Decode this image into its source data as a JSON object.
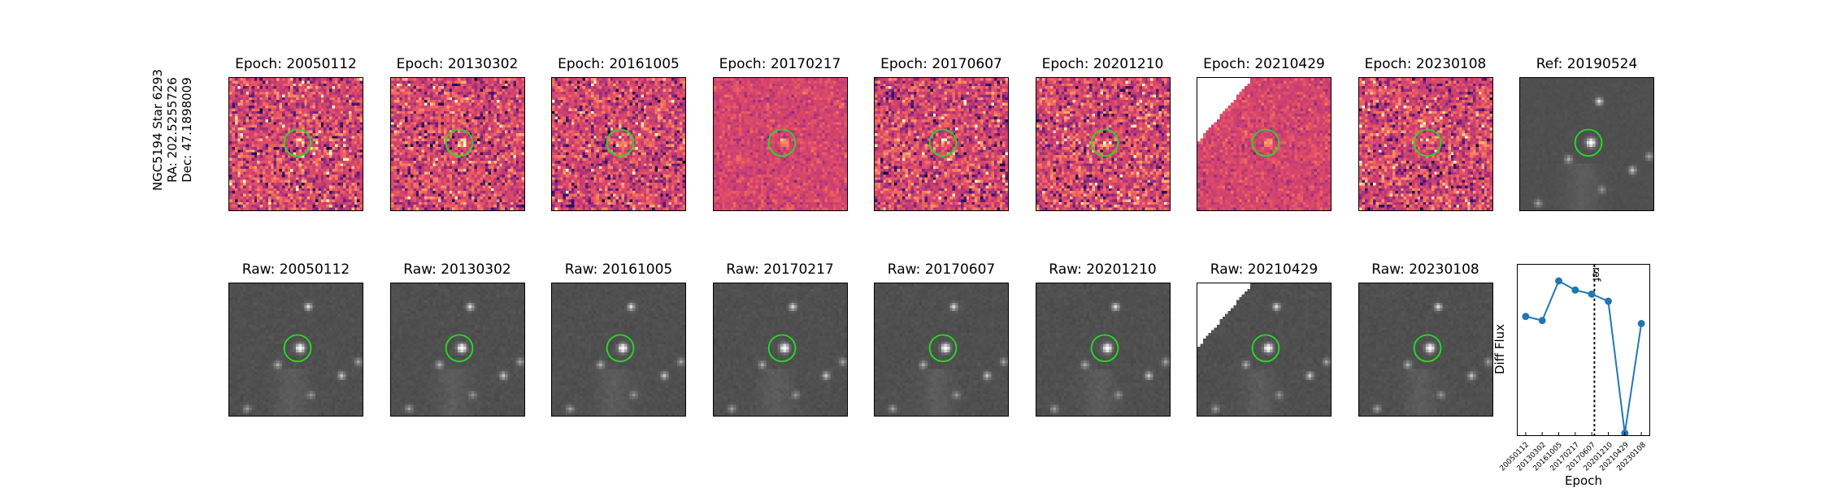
{
  "figure": {
    "side_label": [
      "NGC5194 Star 6293",
      "RA: 202.5255726",
      "Dec: 47.1898009"
    ]
  },
  "diff_panels": [
    {
      "title": "Epoch: 20050112",
      "epoch": "20050112",
      "kind": "diff"
    },
    {
      "title": "Epoch: 20130302",
      "epoch": "20130302",
      "kind": "diff"
    },
    {
      "title": "Epoch: 20161005",
      "epoch": "20161005",
      "kind": "diff"
    },
    {
      "title": "Epoch: 20170217",
      "epoch": "20170217",
      "kind": "diff"
    },
    {
      "title": "Epoch: 20170607",
      "epoch": "20170607",
      "kind": "diff"
    },
    {
      "title": "Epoch: 20201210",
      "epoch": "20201210",
      "kind": "diff"
    },
    {
      "title": "Epoch: 20210429",
      "epoch": "20210429",
      "kind": "diff",
      "partial_coverage": true
    },
    {
      "title": "Epoch: 20230108",
      "epoch": "20230108",
      "kind": "diff"
    },
    {
      "title": "Ref: 20190524",
      "epoch": "20190524",
      "kind": "ref"
    }
  ],
  "raw_panels": [
    {
      "title": "Raw: 20050112",
      "epoch": "20050112"
    },
    {
      "title": "Raw: 20130302",
      "epoch": "20130302"
    },
    {
      "title": "Raw: 20161005",
      "epoch": "20161005"
    },
    {
      "title": "Raw: 20170217",
      "epoch": "20170217"
    },
    {
      "title": "Raw: 20170607",
      "epoch": "20170607"
    },
    {
      "title": "Raw: 20201210",
      "epoch": "20201210"
    },
    {
      "title": "Raw: 20210429",
      "epoch": "20210429",
      "partial_coverage": true
    },
    {
      "title": "Raw: 20230108",
      "epoch": "20230108"
    }
  ],
  "colors": {
    "aperture": "#22dd22",
    "line": "#1f77b4",
    "diff_map": [
      "#0d0829",
      "#3b0f70",
      "#8c2981",
      "#c43c75",
      "#de4968",
      "#f66e5b",
      "#fe9f6d",
      "#fcfdbf"
    ],
    "raw_bg": "#505050"
  },
  "chart_data": {
    "type": "line",
    "x": [
      "20050112",
      "20130302",
      "20161005",
      "20170217",
      "20170607",
      "20201210",
      "20210429",
      "20230108"
    ],
    "series": [
      {
        "values": [
          0.55,
          0.51,
          0.9,
          0.81,
          0.77,
          0.7,
          -0.6,
          0.48
        ]
      }
    ],
    "xlabel": "Epoch",
    "ylabel": "Diff Flux",
    "ylim": [
      -0.62,
      1.06
    ],
    "ref_line": {
      "x_between": [
        "20170607",
        "20201210"
      ],
      "label": "ref"
    },
    "grid": false
  }
}
